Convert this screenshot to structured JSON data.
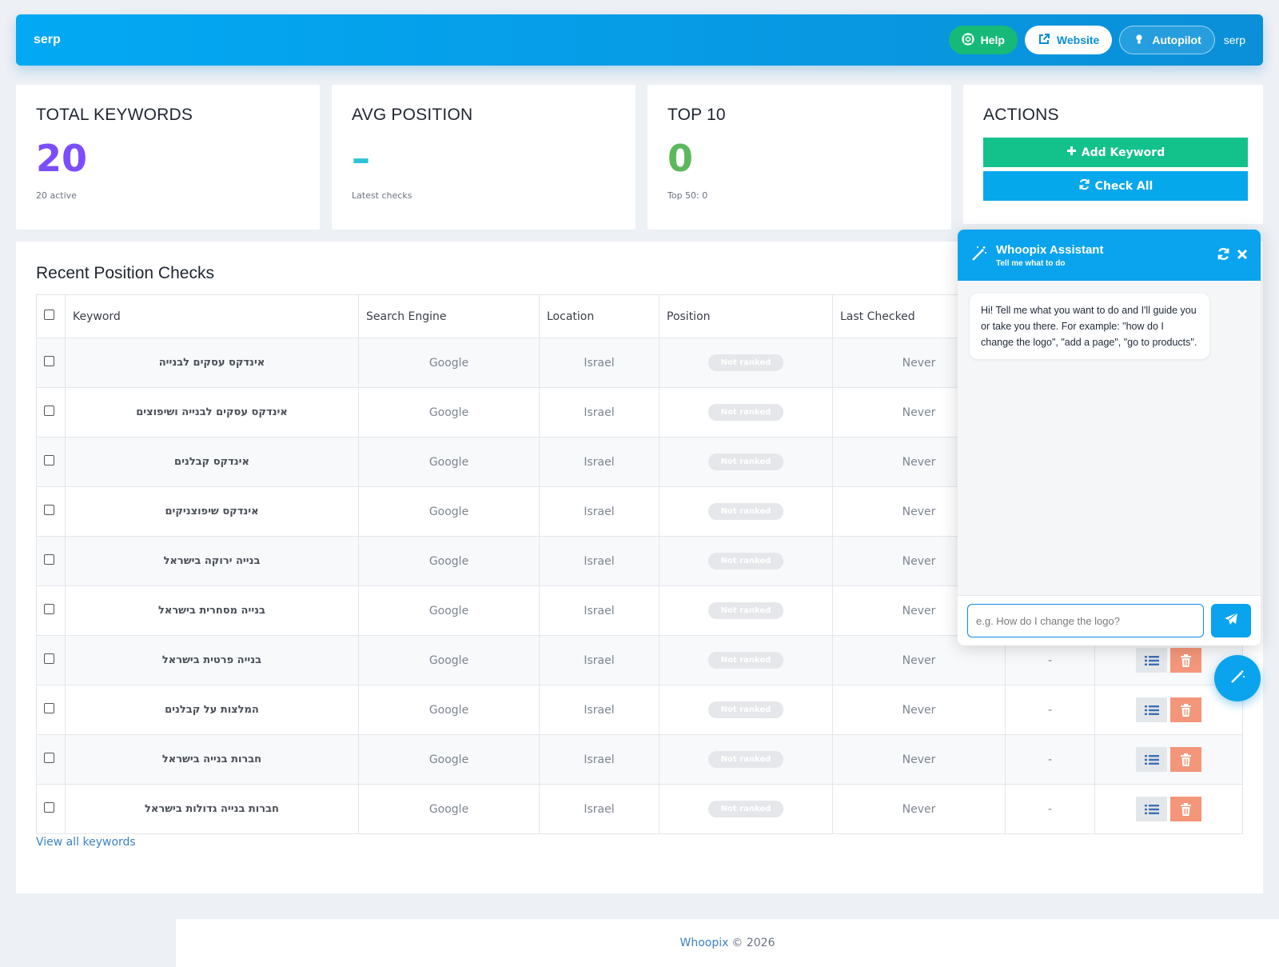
{
  "header": {
    "brand": "serp",
    "help_label": "Help",
    "website_label": "Website",
    "autopilot_label": "Autopilot",
    "user": "serp",
    "colors": {
      "primary": "#03a9f4",
      "help": "#17b978"
    }
  },
  "stats": {
    "total": {
      "title": "TOTAL KEYWORDS",
      "value": "20",
      "sub": "20 active"
    },
    "avg": {
      "title": "AVG POSITION",
      "value": "–",
      "sub": "Latest checks"
    },
    "top10": {
      "title": "TOP 10",
      "value": "0",
      "sub": "Top 50: 0"
    },
    "actions": {
      "title": "ACTIONS",
      "add_label": "Add Keyword",
      "check_label": "Check All"
    }
  },
  "recent": {
    "title": "Recent Position Checks",
    "columns": [
      "Keyword",
      "Search Engine",
      "Location",
      "Position",
      "Last Checked"
    ],
    "rows": [
      {
        "keyword": "אינדקס עסקים לבנייה",
        "engine": "Google",
        "location": "Israel",
        "position": "Not ranked",
        "last_checked": "Never",
        "change": ""
      },
      {
        "keyword": "אינדקס עסקים לבנייה ושיפוצים",
        "engine": "Google",
        "location": "Israel",
        "position": "Not ranked",
        "last_checked": "Never",
        "change": ""
      },
      {
        "keyword": "אינדקס קבלנים",
        "engine": "Google",
        "location": "Israel",
        "position": "Not ranked",
        "last_checked": "Never",
        "change": ""
      },
      {
        "keyword": "אינדקס שיפוצניקים",
        "engine": "Google",
        "location": "Israel",
        "position": "Not ranked",
        "last_checked": "Never",
        "change": ""
      },
      {
        "keyword": "בנייה ירוקה בישראל",
        "engine": "Google",
        "location": "Israel",
        "position": "Not ranked",
        "last_checked": "Never",
        "change": ""
      },
      {
        "keyword": "בנייה מסחרית בישראל",
        "engine": "Google",
        "location": "Israel",
        "position": "Not ranked",
        "last_checked": "Never",
        "change": ""
      },
      {
        "keyword": "בנייה פרטית בישראל",
        "engine": "Google",
        "location": "Israel",
        "position": "Not ranked",
        "last_checked": "Never",
        "change": "-"
      },
      {
        "keyword": "המלצות על קבלנים",
        "engine": "Google",
        "location": "Israel",
        "position": "Not ranked",
        "last_checked": "Never",
        "change": "-"
      },
      {
        "keyword": "חברות בנייה בישראל",
        "engine": "Google",
        "location": "Israel",
        "position": "Not ranked",
        "last_checked": "Never",
        "change": "-"
      },
      {
        "keyword": "חברות בנייה גדולות בישראל",
        "engine": "Google",
        "location": "Israel",
        "position": "Not ranked",
        "last_checked": "Never",
        "change": "-"
      }
    ],
    "view_all": "View all keywords"
  },
  "footer": {
    "brand": "Whoopix",
    "text": "© 2026"
  },
  "assistant": {
    "title": "Whoopix Assistant",
    "subtitle": "Tell me what to do",
    "message": "Hi! Tell me what you want to do and I'll guide you or take you there. For example: \"how do I change the logo\", \"add a page\", \"go to products\".",
    "placeholder": "e.g. How do I change the logo?"
  }
}
